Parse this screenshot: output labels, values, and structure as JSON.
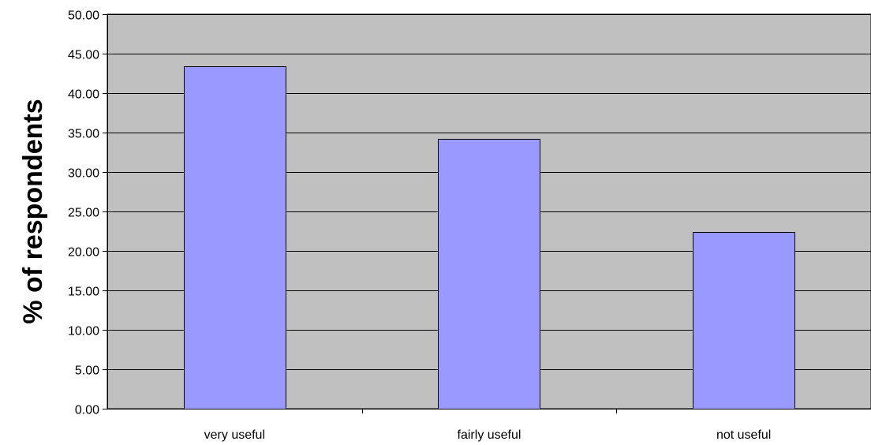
{
  "chart_data": {
    "type": "bar",
    "title": "",
    "xlabel": "",
    "ylabel": "% of respondents",
    "categories": [
      "very useful",
      "fairly useful",
      "not useful"
    ],
    "series": [
      {
        "values": [
          43.4,
          34.2,
          22.4
        ]
      }
    ],
    "ylim": [
      0,
      50
    ],
    "yticks": [
      "0.00",
      "5.00",
      "10.00",
      "15.00",
      "20.00",
      "25.00",
      "30.00",
      "35.00",
      "40.00",
      "45.00",
      "50.00"
    ],
    "grid": true,
    "legend": "none",
    "colors": {
      "bar_fill": "#9999ff",
      "plot_background": "#c0c0c0",
      "gridline": "#000000",
      "axis": "#000000",
      "bar_stroke": "#000000"
    }
  }
}
